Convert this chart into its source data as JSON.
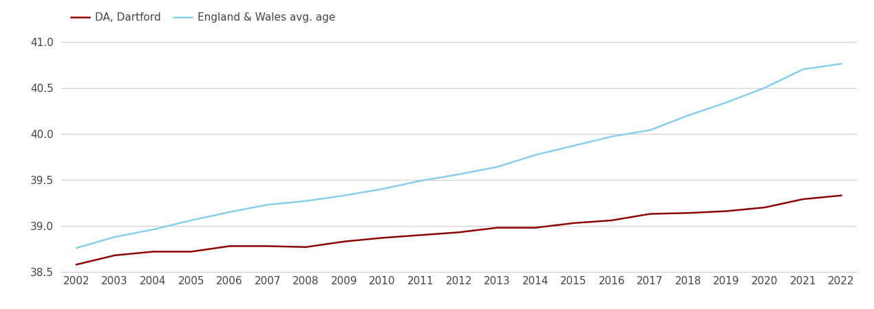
{
  "years": [
    2002,
    2003,
    2004,
    2005,
    2006,
    2007,
    2008,
    2009,
    2010,
    2011,
    2012,
    2013,
    2014,
    2015,
    2016,
    2017,
    2018,
    2019,
    2020,
    2021,
    2022
  ],
  "dartford": [
    38.58,
    38.68,
    38.72,
    38.72,
    38.78,
    38.78,
    38.77,
    38.83,
    38.87,
    38.9,
    38.93,
    38.98,
    38.98,
    39.03,
    39.06,
    39.13,
    39.14,
    39.16,
    39.2,
    39.29,
    39.33
  ],
  "england_wales": [
    38.76,
    38.88,
    38.96,
    39.06,
    39.15,
    39.23,
    39.27,
    39.33,
    39.4,
    39.49,
    39.56,
    39.64,
    39.77,
    39.87,
    39.97,
    40.04,
    40.2,
    40.34,
    40.5,
    40.7,
    40.76
  ],
  "dartford_color": "#8B0000",
  "england_wales_color": "#87CEEB",
  "background_color": "#ffffff",
  "grid_color": "#cccccc",
  "legend_dartford": "DA, Dartford",
  "legend_ew": "England & Wales avg. age",
  "ylim": [
    38.5,
    41.05
  ],
  "yticks": [
    38.5,
    39.0,
    39.5,
    40.0,
    40.5,
    41.0
  ],
  "xlim_left": 2001.6,
  "xlim_right": 2022.4,
  "line_width": 1.8,
  "tick_label_color": "#444444",
  "tick_label_fontsize": 11,
  "legend_fontsize": 11
}
